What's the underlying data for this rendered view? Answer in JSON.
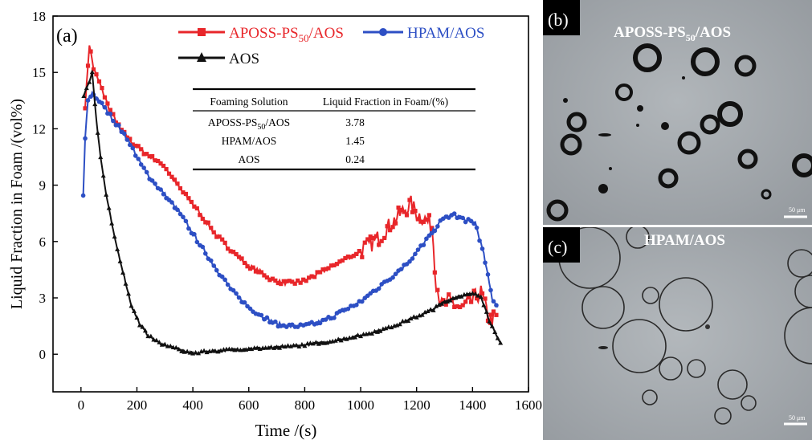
{
  "chart_data": {
    "type": "line",
    "panel_label": "(a)",
    "xlabel": "Time /(s)",
    "ylabel": "Liquid Fraction in Foam /(vol%)",
    "xlim": [
      -100,
      1600
    ],
    "ylim": [
      -2,
      18
    ],
    "xticks": [
      0,
      200,
      400,
      600,
      800,
      1000,
      1200,
      1400,
      1600
    ],
    "yticks": [
      0,
      3,
      6,
      9,
      12,
      15,
      18
    ],
    "grid": false,
    "legend_position": "top",
    "series": [
      {
        "name": "APOSS-PS50/AOS",
        "name_main": "APOSS-PS",
        "name_sub": "50",
        "name_tail": "/AOS",
        "color": "#e8262a",
        "marker": "square",
        "points": [
          [
            15,
            13.2
          ],
          [
            30,
            16.5
          ],
          [
            45,
            15.2
          ],
          [
            70,
            14.3
          ],
          [
            100,
            13.1
          ],
          [
            140,
            12.0
          ],
          [
            180,
            11.3
          ],
          [
            220,
            10.8
          ],
          [
            260,
            10.4
          ],
          [
            300,
            10.0
          ],
          [
            330,
            9.3
          ],
          [
            360,
            8.7
          ],
          [
            400,
            8.0
          ],
          [
            440,
            7.2
          ],
          [
            480,
            6.4
          ],
          [
            520,
            5.8
          ],
          [
            560,
            5.2
          ],
          [
            600,
            4.7
          ],
          [
            640,
            4.4
          ],
          [
            680,
            4.0
          ],
          [
            720,
            3.8
          ],
          [
            760,
            3.8
          ],
          [
            800,
            3.9
          ],
          [
            850,
            4.3
          ],
          [
            900,
            4.7
          ],
          [
            950,
            5.1
          ],
          [
            1000,
            5.5
          ],
          [
            1050,
            6.0
          ],
          [
            1100,
            6.8
          ],
          [
            1150,
            7.6
          ],
          [
            1180,
            8.0
          ],
          [
            1200,
            7.5
          ],
          [
            1230,
            7.2
          ],
          [
            1255,
            6.8
          ],
          [
            1270,
            3.8
          ],
          [
            1290,
            2.6
          ],
          [
            1320,
            2.8
          ],
          [
            1360,
            2.4
          ],
          [
            1400,
            2.9
          ],
          [
            1430,
            3.3
          ],
          [
            1460,
            1.8
          ],
          [
            1490,
            2.0
          ]
        ]
      },
      {
        "name": "HPAM/AOS",
        "color": "#2d4fc4",
        "marker": "circle",
        "points": [
          [
            8,
            8.4
          ],
          [
            15,
            11.5
          ],
          [
            25,
            13.5
          ],
          [
            40,
            13.9
          ],
          [
            60,
            13.6
          ],
          [
            90,
            13.0
          ],
          [
            130,
            12.2
          ],
          [
            170,
            11.4
          ],
          [
            210,
            10.2
          ],
          [
            250,
            9.3
          ],
          [
            300,
            8.5
          ],
          [
            350,
            7.6
          ],
          [
            400,
            6.4
          ],
          [
            450,
            5.3
          ],
          [
            500,
            4.2
          ],
          [
            550,
            3.2
          ],
          [
            600,
            2.5
          ],
          [
            650,
            2.0
          ],
          [
            700,
            1.6
          ],
          [
            750,
            1.5
          ],
          [
            800,
            1.5
          ],
          [
            850,
            1.7
          ],
          [
            900,
            2.0
          ],
          [
            950,
            2.4
          ],
          [
            1000,
            2.8
          ],
          [
            1050,
            3.4
          ],
          [
            1100,
            4.0
          ],
          [
            1150,
            4.6
          ],
          [
            1200,
            5.4
          ],
          [
            1250,
            6.4
          ],
          [
            1300,
            7.3
          ],
          [
            1340,
            7.4
          ],
          [
            1380,
            7.1
          ],
          [
            1410,
            7.0
          ],
          [
            1440,
            5.3
          ],
          [
            1470,
            3.0
          ],
          [
            1490,
            2.5
          ]
        ]
      },
      {
        "name": "AOS",
        "color": "#111111",
        "marker": "triangle",
        "points": [
          [
            10,
            13.8
          ],
          [
            25,
            14.3
          ],
          [
            40,
            15.0
          ],
          [
            55,
            12.5
          ],
          [
            70,
            10.5
          ],
          [
            90,
            8.5
          ],
          [
            120,
            6.2
          ],
          [
            150,
            4.4
          ],
          [
            180,
            2.6
          ],
          [
            210,
            1.6
          ],
          [
            240,
            1.0
          ],
          [
            280,
            0.6
          ],
          [
            320,
            0.4
          ],
          [
            360,
            0.2
          ],
          [
            400,
            0.05
          ],
          [
            450,
            0.15
          ],
          [
            500,
            0.2
          ],
          [
            600,
            0.3
          ],
          [
            700,
            0.35
          ],
          [
            800,
            0.5
          ],
          [
            900,
            0.7
          ],
          [
            1000,
            1.0
          ],
          [
            1100,
            1.4
          ],
          [
            1200,
            2.0
          ],
          [
            1260,
            2.4
          ],
          [
            1300,
            2.8
          ],
          [
            1350,
            3.1
          ],
          [
            1400,
            3.2
          ],
          [
            1430,
            3.1
          ],
          [
            1460,
            1.8
          ],
          [
            1490,
            0.8
          ],
          [
            1500,
            0.6
          ]
        ]
      }
    ],
    "inset_table": {
      "headers": [
        "Foaming Solution",
        "Liquid Fraction in Foam/(%)"
      ],
      "rows": [
        {
          "label_main": "APOSS-PS",
          "label_sub": "50",
          "label_tail": "/AOS",
          "value": "3.78"
        },
        {
          "label_main": "HPAM/AOS",
          "label_sub": "",
          "label_tail": "",
          "value": "1.45"
        },
        {
          "label_main": "AOS",
          "label_sub": "",
          "label_tail": "",
          "value": "0.24"
        }
      ]
    }
  },
  "micrographs": [
    {
      "label": "(b)",
      "title_main": "APOSS-PS",
      "title_sub": "50",
      "title_tail": "/AOS",
      "scale_text": "50 μm"
    },
    {
      "label": "(c)",
      "title_main": "HPAM/AOS",
      "title_sub": "",
      "title_tail": "",
      "scale_text": "50 μm"
    }
  ]
}
